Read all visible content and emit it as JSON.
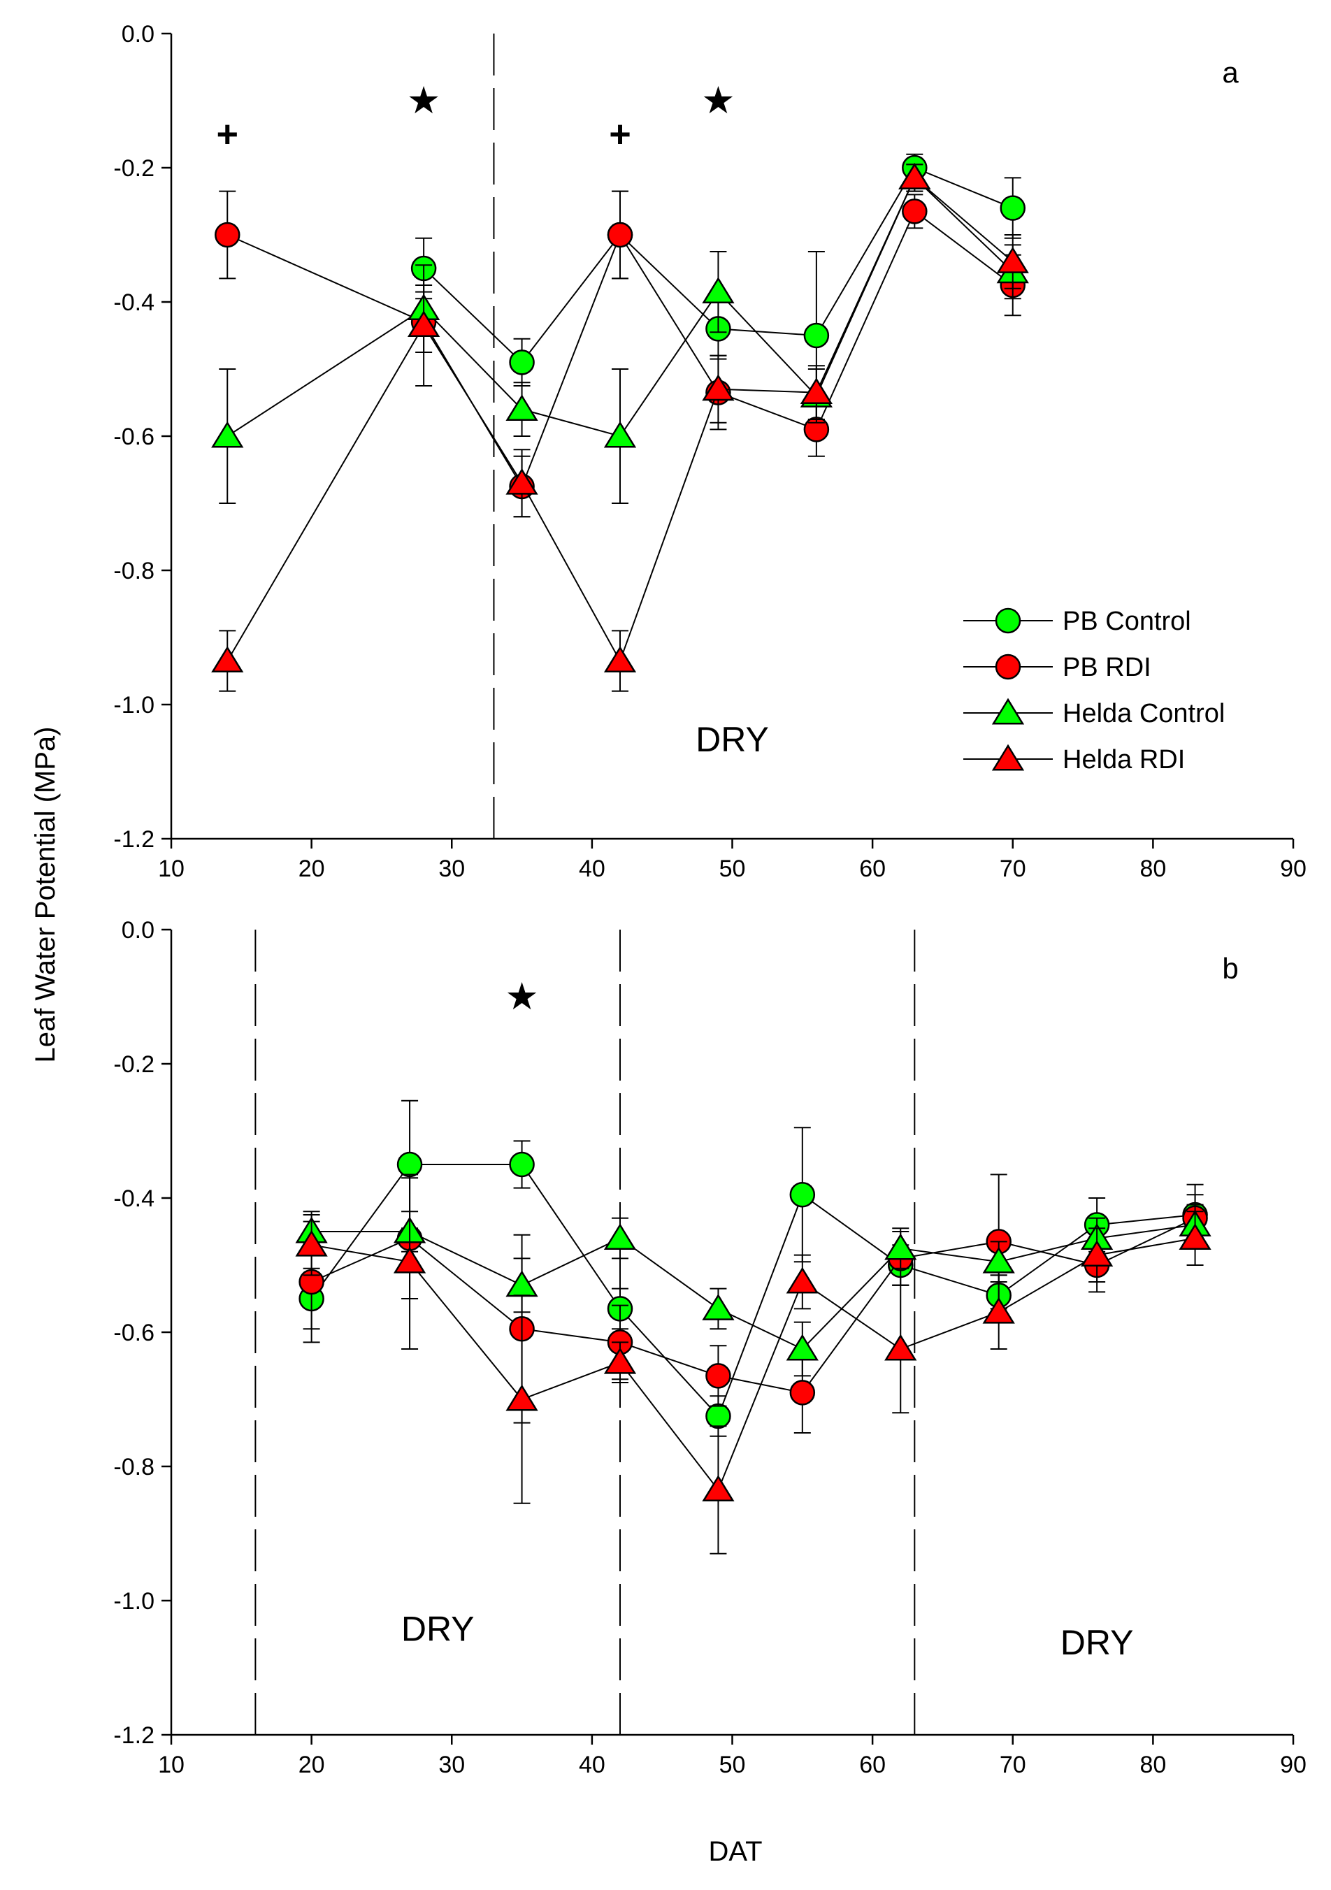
{
  "figure": {
    "ylabel": "Leaf Water Potential (MPa)",
    "xlabel": "DAT"
  },
  "colors": {
    "green": "#00FF00",
    "red": "#FF0000",
    "black": "#000000"
  },
  "chart_data": [
    {
      "panel": "a",
      "type": "line",
      "xlim": [
        10,
        90
      ],
      "ylim": [
        -1.2,
        0.0
      ],
      "xticks": [
        10,
        20,
        30,
        40,
        50,
        60,
        70,
        80,
        90
      ],
      "yticks": [
        0.0,
        -0.2,
        -0.4,
        -0.6,
        -0.8,
        -1.0,
        -1.2
      ],
      "xtick_labels": [
        "10",
        "20",
        "30",
        "40",
        "50",
        "60",
        "70",
        "80",
        "90"
      ],
      "ytick_labels": [
        "0.0",
        "-0.2",
        "-0.4",
        "-0.6",
        "-0.8",
        "-1.0",
        "-1.2"
      ],
      "vlines": [
        33
      ],
      "dry_labels": [
        {
          "text": "DRY",
          "x": 50,
          "y": -1.07
        }
      ],
      "significance_markers": [
        {
          "symbol": "+",
          "x": 14,
          "y": -0.15
        },
        {
          "symbol": "★",
          "x": 28,
          "y": -0.1
        },
        {
          "symbol": "+",
          "x": 42,
          "y": -0.15
        },
        {
          "symbol": "★",
          "x": 49,
          "y": -0.1
        }
      ],
      "legend": {
        "placement": "lower-right",
        "entries": [
          "PB Control",
          "PB RDI",
          "Helda Control",
          "Helda RDI"
        ]
      },
      "series": [
        {
          "name": "PB Control",
          "marker": "circle",
          "color": "#00FF00",
          "x": [
            28,
            35,
            42,
            49,
            56,
            63,
            70
          ],
          "y": [
            -0.35,
            -0.49,
            -0.3,
            -0.44,
            -0.45,
            -0.2,
            -0.26
          ],
          "err": [
            0.045,
            0.035,
            0.065,
            0.045,
            0.125,
            0.02,
            0.045
          ]
        },
        {
          "name": "PB RDI",
          "marker": "circle",
          "color": "#FF0000",
          "x": [
            14,
            28,
            35,
            42,
            49,
            56,
            63,
            70
          ],
          "y": [
            -0.3,
            -0.43,
            -0.675,
            -0.3,
            -0.535,
            -0.59,
            -0.265,
            -0.375
          ],
          "err": [
            0.065,
            0.045,
            0.045,
            0.065,
            0.055,
            0.04,
            0.025,
            0.045
          ]
        },
        {
          "name": "Helda Control",
          "marker": "triangle",
          "color": "#00FF00",
          "x": [
            14,
            28,
            35,
            42,
            49,
            56,
            63,
            70
          ],
          "y": [
            -0.6,
            -0.41,
            -0.56,
            -0.6,
            -0.385,
            -0.54,
            -0.215,
            -0.355
          ],
          "err": [
            0.1,
            0.035,
            0.04,
            0.1,
            0.06,
            0.04,
            0.02,
            0.04
          ]
        },
        {
          "name": "Helda RDI",
          "marker": "triangle",
          "color": "#FF0000",
          "x": [
            14,
            28,
            35,
            42,
            49,
            56,
            63,
            70
          ],
          "y": [
            -0.935,
            -0.435,
            -0.67,
            -0.935,
            -0.53,
            -0.535,
            -0.215,
            -0.34
          ],
          "err": [
            0.045,
            0.09,
            0.05,
            0.045,
            0.05,
            0.04,
            0.02,
            0.04
          ]
        }
      ]
    },
    {
      "panel": "b",
      "type": "line",
      "xlim": [
        10,
        90
      ],
      "ylim": [
        -1.2,
        0.0
      ],
      "xticks": [
        10,
        20,
        30,
        40,
        50,
        60,
        70,
        80,
        90
      ],
      "yticks": [
        0.0,
        -0.2,
        -0.4,
        -0.6,
        -0.8,
        -1.0,
        -1.2
      ],
      "xtick_labels": [
        "10",
        "20",
        "30",
        "40",
        "50",
        "60",
        "70",
        "80",
        "90"
      ],
      "ytick_labels": [
        "0.0",
        "-0.2",
        "-0.4",
        "-0.6",
        "-0.8",
        "-1.0",
        "-1.2"
      ],
      "vlines": [
        16,
        42,
        63
      ],
      "dry_labels": [
        {
          "text": "DRY",
          "x": 29,
          "y": -1.06
        },
        {
          "text": "DRY",
          "x": 76,
          "y": -1.08
        }
      ],
      "significance_markers": [
        {
          "symbol": "★",
          "x": 35,
          "y": -0.1
        }
      ],
      "series": [
        {
          "name": "PB Control",
          "marker": "circle",
          "color": "#00FF00",
          "x": [
            20,
            27,
            35,
            42,
            49,
            55,
            62,
            69,
            76,
            83
          ],
          "y": [
            -0.55,
            -0.35,
            -0.35,
            -0.565,
            -0.725,
            -0.395,
            -0.5,
            -0.545,
            -0.44,
            -0.425
          ],
          "err": [
            0.045,
            0.095,
            0.035,
            0.03,
            0.03,
            0.1,
            0.03,
            0.03,
            0.04,
            0.045
          ]
        },
        {
          "name": "PB RDI",
          "marker": "circle",
          "color": "#FF0000",
          "x": [
            20,
            27,
            35,
            42,
            49,
            55,
            62,
            69,
            76,
            83
          ],
          "y": [
            -0.525,
            -0.46,
            -0.595,
            -0.615,
            -0.665,
            -0.69,
            -0.49,
            -0.465,
            -0.5,
            -0.43
          ],
          "err": [
            0.09,
            0.09,
            0.14,
            0.055,
            0.045,
            0.06,
            0.04,
            0.1,
            0.04,
            0.035
          ]
        },
        {
          "name": "Helda Control",
          "marker": "triangle",
          "color": "#00FF00",
          "x": [
            20,
            27,
            35,
            42,
            49,
            55,
            62,
            69,
            76,
            83
          ],
          "y": [
            -0.45,
            -0.45,
            -0.53,
            -0.46,
            -0.565,
            -0.625,
            -0.475,
            -0.495,
            -0.46,
            -0.44
          ],
          "err": [
            0.03,
            0.03,
            0.04,
            0.03,
            0.03,
            0.04,
            0.03,
            0.03,
            0.03,
            0.03
          ]
        },
        {
          "name": "Helda RDI",
          "marker": "triangle",
          "color": "#FF0000",
          "x": [
            20,
            27,
            35,
            42,
            49,
            55,
            62,
            69,
            76,
            83
          ],
          "y": [
            -0.47,
            -0.495,
            -0.7,
            -0.645,
            -0.835,
            -0.525,
            -0.625,
            -0.57,
            -0.485,
            -0.46
          ],
          "err": [
            0.045,
            0.13,
            0.155,
            0.03,
            0.095,
            0.04,
            0.095,
            0.055,
            0.04,
            0.04
          ]
        }
      ]
    }
  ]
}
